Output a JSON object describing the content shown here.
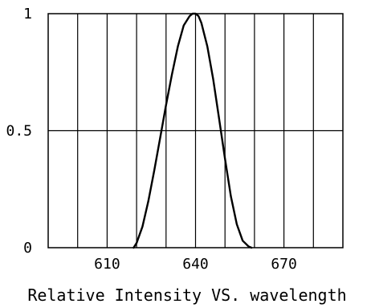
{
  "chart_data": {
    "type": "line",
    "title": "",
    "xlabel": "Relative Intensity VS. wavelength",
    "ylabel": "",
    "xlim": [
      590,
      690
    ],
    "ylim": [
      0,
      1
    ],
    "x_ticks": [
      610,
      640,
      670
    ],
    "x_tick_labels": [
      "610",
      "640",
      "670"
    ],
    "y_ticks": [
      0,
      0.5,
      1
    ],
    "y_tick_labels": [
      "0",
      "0.5",
      "1"
    ],
    "grid": true,
    "x_gridlines": [
      600,
      610,
      620,
      630,
      640,
      650,
      660,
      670,
      680
    ],
    "y_gridlines": [
      0.5
    ],
    "line_color": "#000000",
    "series": [
      {
        "x": [
          619,
          620,
          622,
          624,
          626,
          628,
          630,
          632,
          634,
          636,
          638,
          639,
          640,
          641,
          642,
          644,
          646,
          648,
          650,
          652,
          654,
          656,
          658,
          659
        ],
        "values": [
          0,
          0.02,
          0.09,
          0.2,
          0.33,
          0.47,
          0.61,
          0.74,
          0.86,
          0.95,
          0.99,
          1.0,
          1.0,
          0.99,
          0.96,
          0.86,
          0.72,
          0.55,
          0.38,
          0.22,
          0.1,
          0.03,
          0.005,
          0
        ]
      }
    ]
  }
}
